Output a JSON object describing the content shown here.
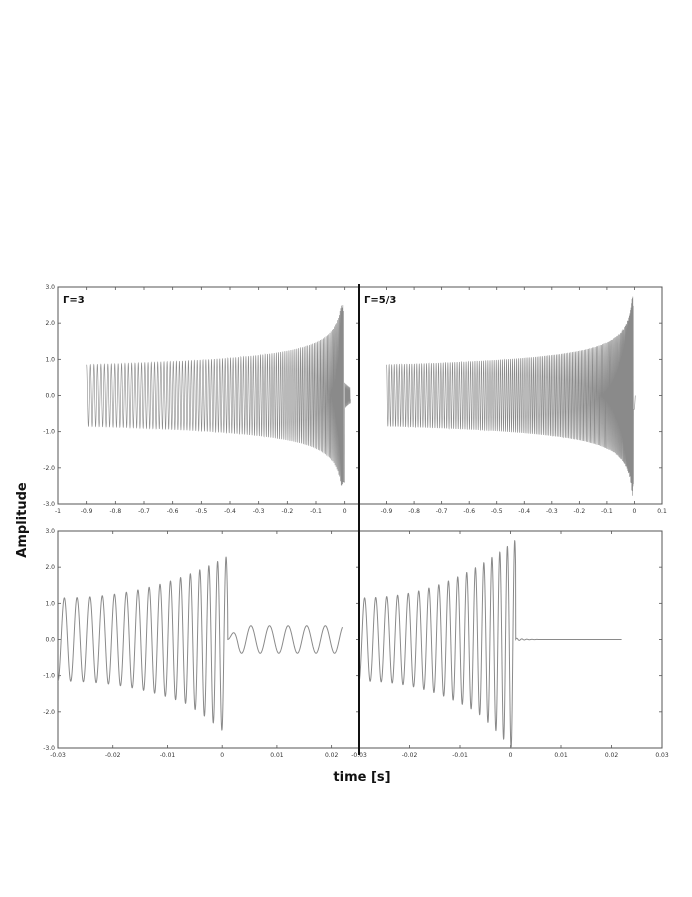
{
  "chart_data": {
    "type": "line",
    "ylabel": "Amplitude",
    "xlabel": "time [s]",
    "colors": {
      "wave": "#8a8a8a",
      "frame": "#555555"
    },
    "panels": [
      {
        "id": "tl",
        "label": "Γ=3",
        "xlim": [
          -1.0,
          0.05
        ],
        "ylim": [
          -3.0,
          3.0
        ],
        "xticks": [
          -1,
          -0.9,
          -0.8,
          -0.7,
          -0.6,
          -0.5,
          -0.4,
          -0.3,
          -0.2,
          -0.1,
          0
        ],
        "xtick_labels": [
          "-1",
          "-0.9",
          "-0.8",
          "-0.7",
          "-0.6",
          "-0.5",
          "-0.4",
          "-0.3",
          "-0.2",
          "-0.1",
          "0"
        ],
        "yticks": [
          3,
          2,
          1,
          0,
          -1,
          -2,
          -3
        ],
        "ytick_labels": [
          "3.0",
          "2.0",
          "1.0",
          "0.0",
          "-1.0",
          "-2.0",
          "-3.0"
        ],
        "signal": {
          "t_start": -0.9,
          "t_merge": 0.0,
          "t_end": 0.02,
          "amp0": 0.85,
          "amp_peak": 2.5,
          "ringdown_amp": 0.35,
          "cycles": 120
        }
      },
      {
        "id": "tr",
        "label": "Γ=5/3",
        "xlim": [
          -1.0,
          0.1
        ],
        "ylim": [
          -3.0,
          3.0
        ],
        "xticks": [
          -0.9,
          -0.8,
          -0.7,
          -0.6,
          -0.5,
          -0.4,
          -0.3,
          -0.2,
          -0.1,
          0,
          0.1
        ],
        "xtick_labels": [
          "-0.9",
          "-0.8",
          "-0.7",
          "-0.6",
          "-0.5",
          "-0.4",
          "-0.3",
          "-0.2",
          "-0.1",
          "0",
          "0.1"
        ],
        "yticks": [],
        "ytick_labels": [],
        "signal": {
          "t_start": -0.9,
          "t_merge": 0.0,
          "t_end": 0.0,
          "amp0": 0.85,
          "amp_peak": 2.8,
          "ringdown_amp": 0.0,
          "cycles": 160
        }
      },
      {
        "id": "bl",
        "label": "",
        "xlim": [
          -0.03,
          0.025
        ],
        "ylim": [
          -3.0,
          3.0
        ],
        "xticks": [
          -0.03,
          -0.02,
          -0.01,
          0,
          0.01,
          0.02
        ],
        "xtick_labels": [
          "-0.03",
          "-0.02",
          "-0.01",
          "0",
          "0.01",
          "0.02"
        ],
        "yticks": [
          3,
          2,
          1,
          0,
          -1,
          -2,
          -3
        ],
        "ytick_labels": [
          "3.0",
          "2.0",
          "1.0",
          "0.0",
          "-1.0",
          "-2.0",
          "-3.0"
        ],
        "signal": {
          "t_start": -0.03,
          "t_merge": 0.001,
          "t_end": 0.022,
          "amp0": 1.15,
          "amp_peak": 2.3,
          "ringdown_amp": 0.38,
          "cycles": 17,
          "ring_period": 0.0034
        }
      },
      {
        "id": "br",
        "label": "",
        "xlim": [
          -0.03,
          0.03
        ],
        "ylim": [
          -3.0,
          3.0
        ],
        "xticks": [
          -0.03,
          -0.02,
          -0.01,
          0,
          0.01,
          0.02,
          0.03
        ],
        "xtick_labels": [
          "-0.03",
          "-0.02",
          "-0.01",
          "0",
          "0.01",
          "0.02",
          "0.03"
        ],
        "yticks": [],
        "ytick_labels": [],
        "signal": {
          "t_start": -0.03,
          "t_merge": 0.001,
          "t_end": 0.022,
          "amp0": 1.15,
          "amp_peak": 2.75,
          "ringdown_amp": 0.04,
          "cycles": 18,
          "ring_period": 0.001
        }
      }
    ]
  }
}
